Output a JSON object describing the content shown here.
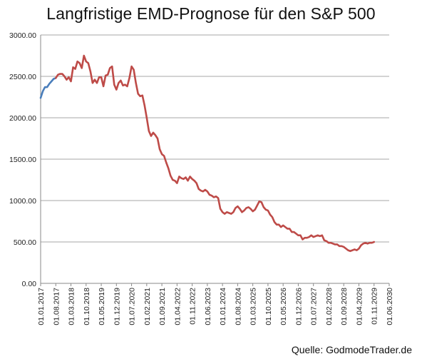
{
  "chart_data": {
    "type": "line",
    "title": "Langfristige EMD-Prognose für den S&P 500",
    "source": "Quelle: GodmodeTrader.de",
    "xlabel": "",
    "ylabel": "",
    "ylim": [
      0,
      3000
    ],
    "yticks": [
      "0.00",
      "500.00",
      "1000.00",
      "1500.00",
      "2000.00",
      "2500.00",
      "3000.00"
    ],
    "x_tick_labels": [
      "01.01.2017",
      "01.08.2017",
      "01.03.2018",
      "01.10.2018",
      "01.05.2019",
      "01.12.2019",
      "01.07.2020",
      "01.02.2021",
      "01.09.2021",
      "01.04.2022",
      "01.11.2022",
      "01.06.2023",
      "01.01.2024",
      "01.08.2024",
      "01.03.2025",
      "01.10.2025",
      "01.05.2026",
      "01.12.2026",
      "01.07.2027",
      "01.02.2028",
      "01.09.2028",
      "01.04.2029",
      "01.11.2029",
      "01.06.2030"
    ],
    "grid": {
      "horizontal": true,
      "vertical": false
    },
    "series": [
      {
        "color": "#4a7ebb",
        "points": [
          [
            "2017-01",
            2240
          ],
          [
            "2017-02",
            2320
          ],
          [
            "2017-03",
            2370
          ],
          [
            "2017-04",
            2370
          ],
          [
            "2017-05",
            2410
          ],
          [
            "2017-06",
            2440
          ],
          [
            "2017-07",
            2470
          ],
          [
            "2017-08",
            2480
          ]
        ]
      },
      {
        "color": "#be4b48",
        "points": [
          [
            "2017-08",
            2480
          ],
          [
            "2017-09",
            2520
          ],
          [
            "2017-10",
            2530
          ],
          [
            "2017-11",
            2530
          ],
          [
            "2017-12",
            2500
          ],
          [
            "2018-01",
            2460
          ],
          [
            "2018-02",
            2490
          ],
          [
            "2018-03",
            2440
          ],
          [
            "2018-04",
            2610
          ],
          [
            "2018-05",
            2590
          ],
          [
            "2018-06",
            2680
          ],
          [
            "2018-07",
            2660
          ],
          [
            "2018-08",
            2600
          ],
          [
            "2018-09",
            2750
          ],
          [
            "2018-10",
            2680
          ],
          [
            "2018-11",
            2660
          ],
          [
            "2018-12",
            2560
          ],
          [
            "2019-01",
            2420
          ],
          [
            "2019-02",
            2460
          ],
          [
            "2019-03",
            2420
          ],
          [
            "2019-04",
            2490
          ],
          [
            "2019-05",
            2490
          ],
          [
            "2019-06",
            2380
          ],
          [
            "2019-07",
            2510
          ],
          [
            "2019-08",
            2520
          ],
          [
            "2019-09",
            2600
          ],
          [
            "2019-10",
            2620
          ],
          [
            "2019-11",
            2400
          ],
          [
            "2019-12",
            2340
          ],
          [
            "2020-01",
            2420
          ],
          [
            "2020-02",
            2450
          ],
          [
            "2020-03",
            2390
          ],
          [
            "2020-04",
            2400
          ],
          [
            "2020-05",
            2380
          ],
          [
            "2020-06",
            2480
          ],
          [
            "2020-07",
            2620
          ],
          [
            "2020-08",
            2580
          ],
          [
            "2020-09",
            2420
          ],
          [
            "2020-10",
            2290
          ],
          [
            "2020-11",
            2260
          ],
          [
            "2020-12",
            2270
          ],
          [
            "2021-01",
            2150
          ],
          [
            "2021-02",
            2000
          ],
          [
            "2021-03",
            1840
          ],
          [
            "2021-04",
            1780
          ],
          [
            "2021-05",
            1820
          ],
          [
            "2021-06",
            1790
          ],
          [
            "2021-07",
            1750
          ],
          [
            "2021-08",
            1620
          ],
          [
            "2021-09",
            1560
          ],
          [
            "2021-10",
            1540
          ],
          [
            "2021-11",
            1460
          ],
          [
            "2021-12",
            1390
          ],
          [
            "2022-01",
            1300
          ],
          [
            "2022-02",
            1250
          ],
          [
            "2022-03",
            1240
          ],
          [
            "2022-04",
            1210
          ],
          [
            "2022-05",
            1290
          ],
          [
            "2022-06",
            1270
          ],
          [
            "2022-07",
            1260
          ],
          [
            "2022-08",
            1280
          ],
          [
            "2022-09",
            1240
          ],
          [
            "2022-10",
            1290
          ],
          [
            "2022-11",
            1260
          ],
          [
            "2022-12",
            1240
          ],
          [
            "2023-01",
            1210
          ],
          [
            "2023-02",
            1140
          ],
          [
            "2023-03",
            1120
          ],
          [
            "2023-04",
            1110
          ],
          [
            "2023-05",
            1130
          ],
          [
            "2023-06",
            1110
          ],
          [
            "2023-07",
            1070
          ],
          [
            "2023-08",
            1060
          ],
          [
            "2023-09",
            1040
          ],
          [
            "2023-10",
            1050
          ],
          [
            "2023-11",
            1030
          ],
          [
            "2023-12",
            900
          ],
          [
            "2024-01",
            860
          ],
          [
            "2024-02",
            840
          ],
          [
            "2024-03",
            860
          ],
          [
            "2024-04",
            850
          ],
          [
            "2024-05",
            840
          ],
          [
            "2024-06",
            860
          ],
          [
            "2024-07",
            910
          ],
          [
            "2024-08",
            930
          ],
          [
            "2024-09",
            900
          ],
          [
            "2024-10",
            860
          ],
          [
            "2024-11",
            880
          ],
          [
            "2024-12",
            910
          ],
          [
            "2025-01",
            920
          ],
          [
            "2025-02",
            900
          ],
          [
            "2025-03",
            870
          ],
          [
            "2025-04",
            890
          ],
          [
            "2025-05",
            940
          ],
          [
            "2025-06",
            990
          ],
          [
            "2025-07",
            980
          ],
          [
            "2025-08",
            920
          ],
          [
            "2025-09",
            890
          ],
          [
            "2025-10",
            880
          ],
          [
            "2025-11",
            830
          ],
          [
            "2025-12",
            800
          ],
          [
            "2026-01",
            740
          ],
          [
            "2026-02",
            710
          ],
          [
            "2026-03",
            710
          ],
          [
            "2026-04",
            680
          ],
          [
            "2026-05",
            700
          ],
          [
            "2026-06",
            680
          ],
          [
            "2026-07",
            660
          ],
          [
            "2026-08",
            660
          ],
          [
            "2026-09",
            620
          ],
          [
            "2026-10",
            620
          ],
          [
            "2026-11",
            600
          ],
          [
            "2026-12",
            580
          ],
          [
            "2027-01",
            580
          ],
          [
            "2027-02",
            530
          ],
          [
            "2027-03",
            550
          ],
          [
            "2027-04",
            550
          ],
          [
            "2027-05",
            560
          ],
          [
            "2027-06",
            580
          ],
          [
            "2027-07",
            560
          ],
          [
            "2027-08",
            570
          ],
          [
            "2027-09",
            580
          ],
          [
            "2027-10",
            570
          ],
          [
            "2027-11",
            580
          ],
          [
            "2027-12",
            520
          ],
          [
            "2028-01",
            510
          ],
          [
            "2028-02",
            490
          ],
          [
            "2028-03",
            490
          ],
          [
            "2028-04",
            480
          ],
          [
            "2028-05",
            470
          ],
          [
            "2028-06",
            470
          ],
          [
            "2028-07",
            450
          ],
          [
            "2028-08",
            450
          ],
          [
            "2028-09",
            440
          ],
          [
            "2028-10",
            420
          ],
          [
            "2028-11",
            400
          ],
          [
            "2028-12",
            390
          ],
          [
            "2029-01",
            400
          ],
          [
            "2029-02",
            410
          ],
          [
            "2029-03",
            400
          ],
          [
            "2029-04",
            420
          ],
          [
            "2029-05",
            460
          ],
          [
            "2029-06",
            480
          ],
          [
            "2029-07",
            490
          ],
          [
            "2029-08",
            480
          ],
          [
            "2029-09",
            490
          ],
          [
            "2029-10",
            490
          ],
          [
            "2029-11",
            500
          ]
        ]
      }
    ]
  }
}
